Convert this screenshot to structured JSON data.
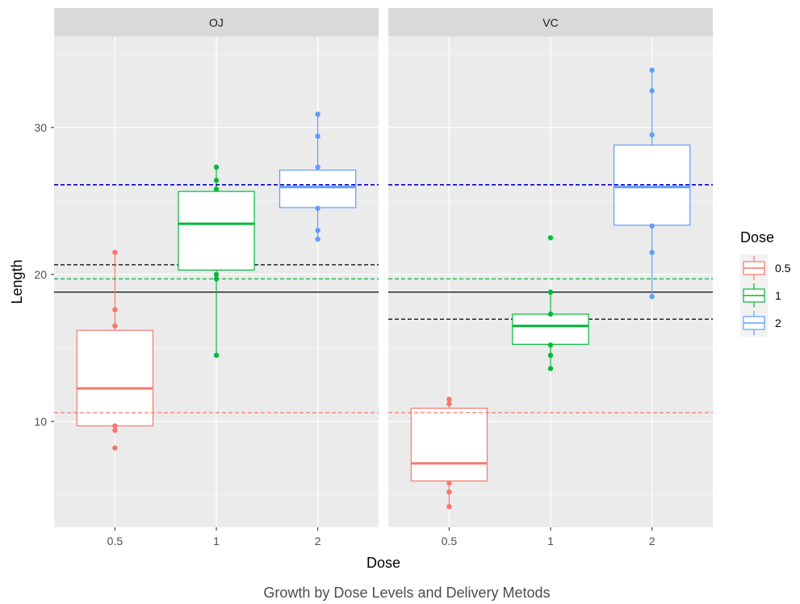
{
  "chart_data": {
    "type": "box",
    "xlabel": "Dose",
    "ylabel": "Length",
    "caption": "Growth by Dose Levels and Delivery Metods",
    "ylim": [
      2.8,
      36.2
    ],
    "y_ticks": [
      10,
      20,
      30
    ],
    "categories": [
      "0.5",
      "1",
      "2"
    ],
    "legend": {
      "title": "Dose",
      "position": "right",
      "items": [
        {
          "label": "0.5",
          "color": "#F8766D"
        },
        {
          "label": "1",
          "color": "#00BA38"
        },
        {
          "label": "2",
          "color": "#619CFF"
        }
      ]
    },
    "overall_mean": 18.8,
    "panels": [
      {
        "label": "OJ",
        "supp_mean": 20.66,
        "dose_means": {
          "0.5": 10.6,
          "1": 19.7,
          "2": 26.1
        },
        "boxes": [
          {
            "dose": "0.5",
            "lower": 9.7,
            "q1": 9.7,
            "median": 12.25,
            "q3": 16.2,
            "upper": 21.5,
            "points": [
              8.2,
              9.4,
              9.7,
              16.5,
              17.6,
              21.5
            ]
          },
          {
            "dose": "1",
            "lower": 14.5,
            "q1": 20.3,
            "median": 23.45,
            "q3": 25.65,
            "upper": 27.3,
            "points": [
              14.5,
              19.7,
              20.0,
              25.8,
              26.4,
              27.3
            ]
          },
          {
            "dose": "2",
            "lower": 22.4,
            "q1": 24.55,
            "median": 25.95,
            "q3": 27.1,
            "upper": 30.9,
            "points": [
              22.4,
              23.0,
              24.5,
              27.3,
              29.4,
              30.9
            ]
          }
        ]
      },
      {
        "label": "VC",
        "supp_mean": 16.96,
        "dose_means": {
          "0.5": 10.6,
          "1": 19.7,
          "2": 26.1
        },
        "boxes": [
          {
            "dose": "0.5",
            "lower": 4.2,
            "q1": 5.95,
            "median": 7.15,
            "q3": 10.9,
            "upper": 11.5,
            "points": [
              4.2,
              5.2,
              5.8,
              11.2,
              11.5
            ]
          },
          {
            "dose": "1",
            "lower": 13.6,
            "q1": 15.25,
            "median": 16.5,
            "q3": 17.3,
            "upper": 18.8,
            "points": [
              13.6,
              14.5,
              15.2,
              17.3,
              18.8,
              22.5
            ]
          },
          {
            "dose": "2",
            "lower": 18.5,
            "q1": 23.35,
            "median": 25.95,
            "q3": 28.8,
            "upper": 33.9,
            "points": [
              18.5,
              21.5,
              23.3,
              29.5,
              32.5,
              33.9
            ]
          }
        ]
      }
    ],
    "grid": true
  }
}
